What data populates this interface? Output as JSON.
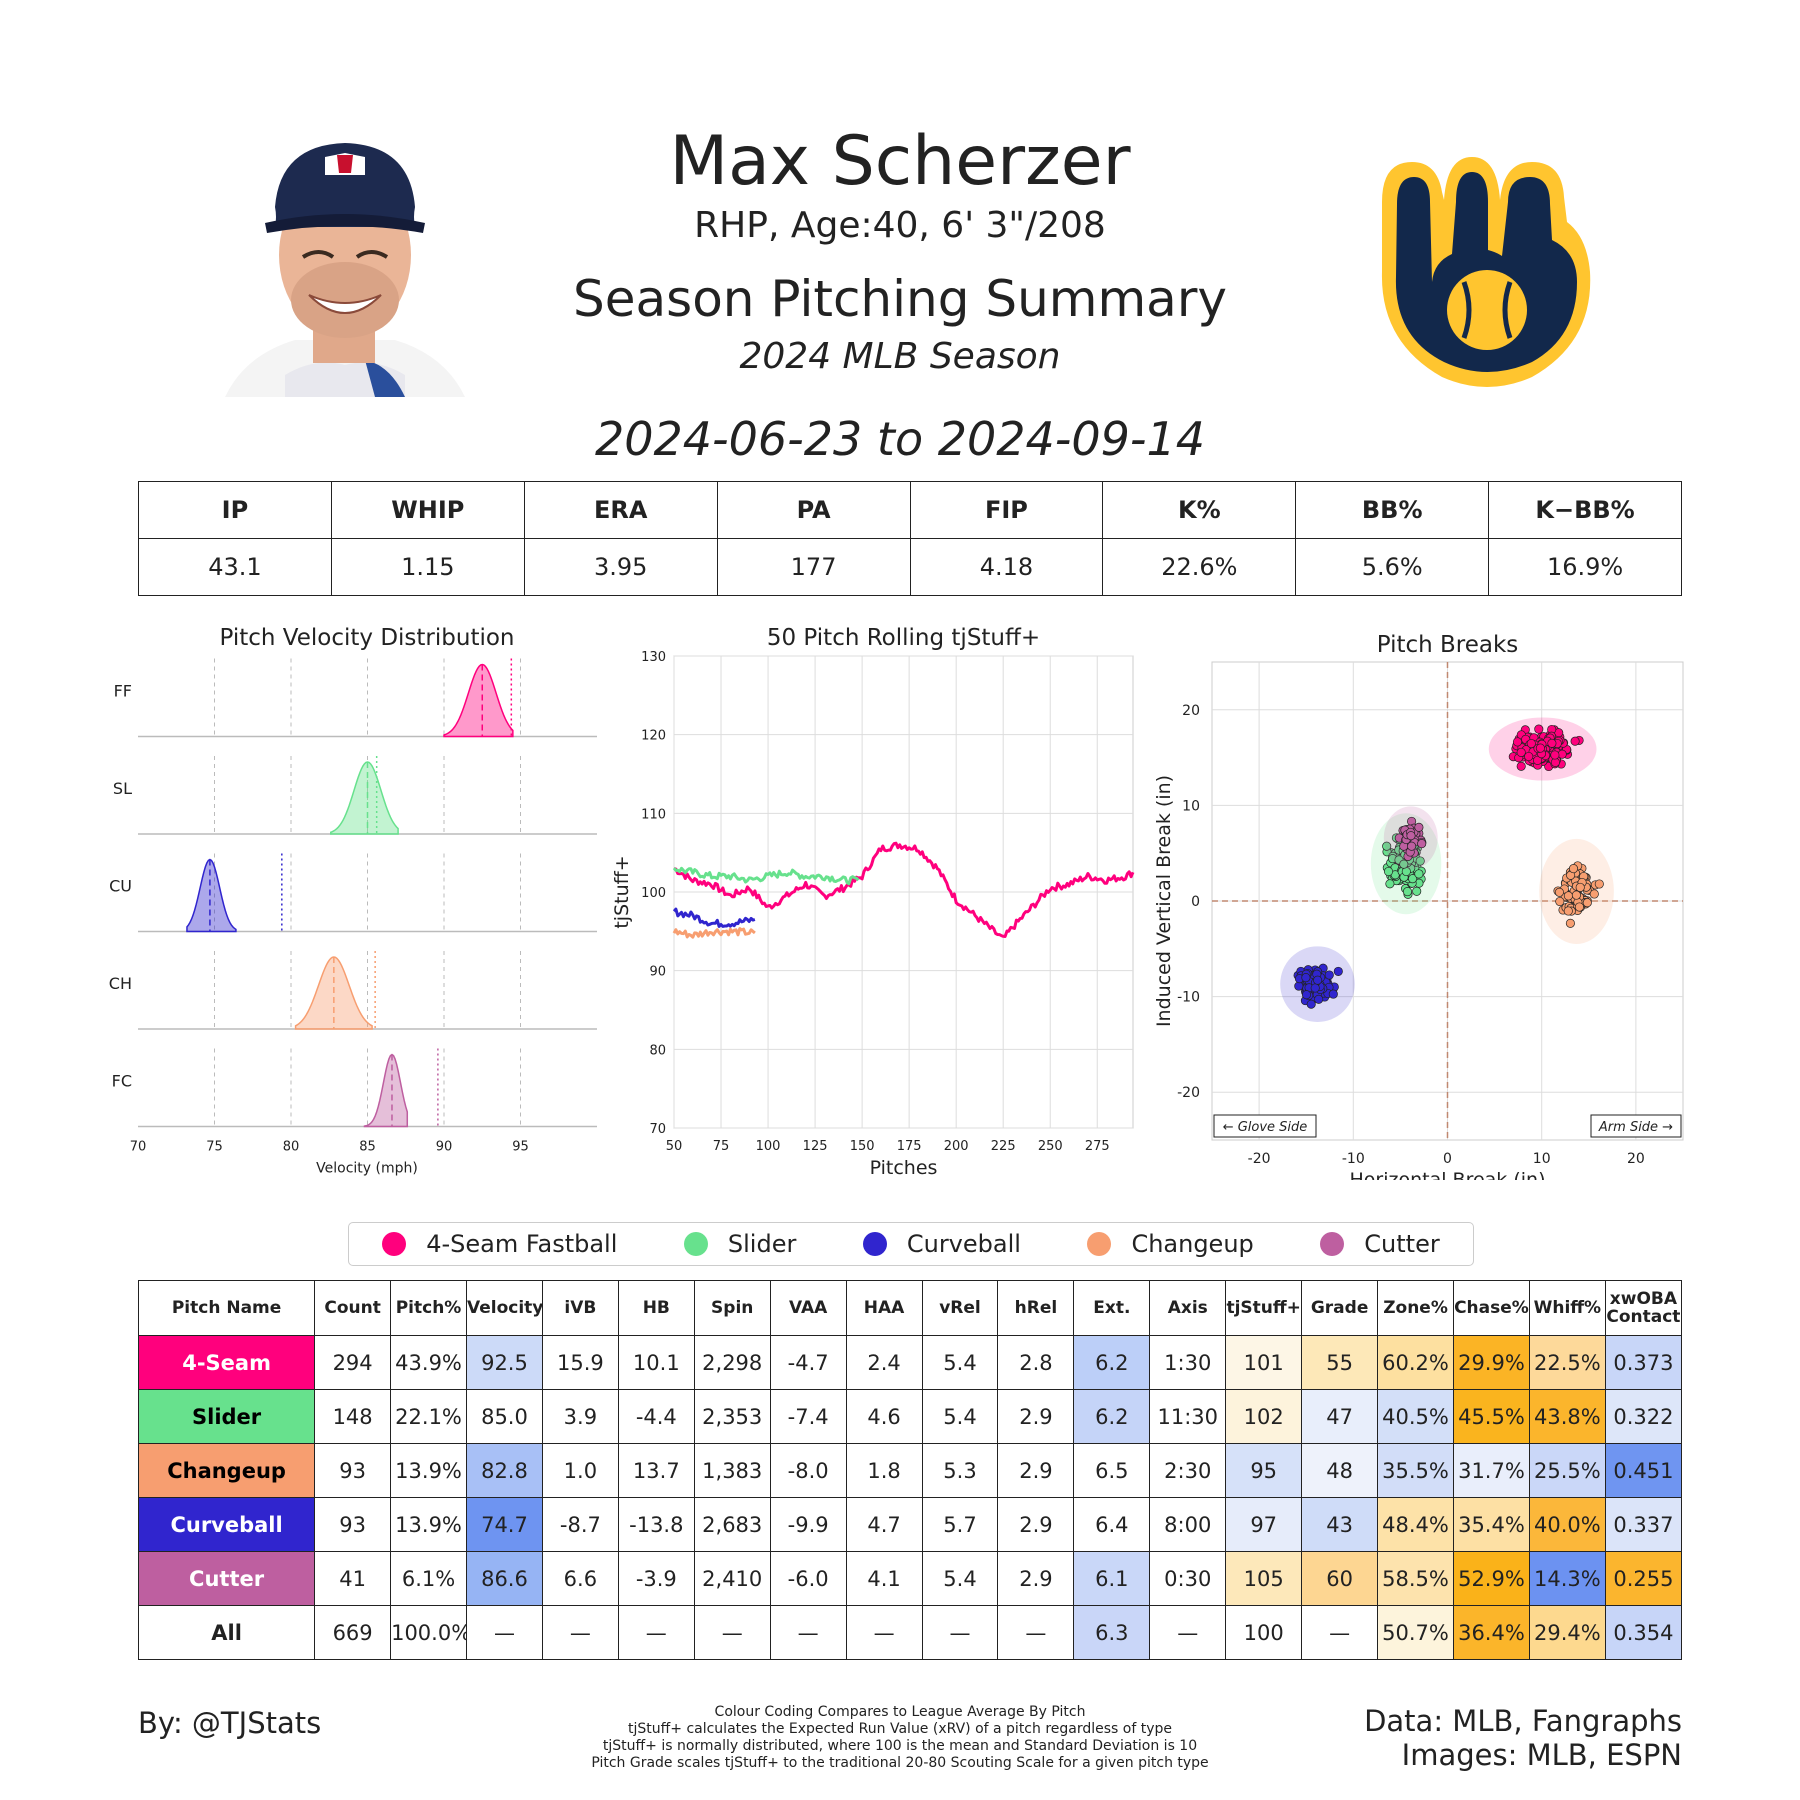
{
  "header": {
    "player_name": "Max Scherzer",
    "player_info": "RHP, Age:40, 6' 3\"/208",
    "summary_title": "Season Pitching Summary",
    "season_label": "2024 MLB Season",
    "date_range": "2024-06-23 to 2024-09-14"
  },
  "images": {
    "headshot": "player-headshot",
    "logo": "brewers-glove-logo"
  },
  "colors": {
    "FF": "#FF007D",
    "SL": "#67E18D",
    "CU": "#3025CE",
    "CH": "#F79E70",
    "FC": "#BE5FA0",
    "logo_navy": "#12284B",
    "logo_gold": "#FFC52F"
  },
  "season_stats": {
    "headers": [
      "IP",
      "WHIP",
      "ERA",
      "PA",
      "FIP",
      "K%",
      "BB%",
      "K−BB%"
    ],
    "values": [
      "43.1",
      "1.15",
      "3.95",
      "177",
      "4.18",
      "22.6%",
      "5.6%",
      "16.9%"
    ]
  },
  "chart_data": [
    {
      "type": "area",
      "title": "Pitch Velocity Distribution",
      "xlabel": "Velocity (mph)",
      "xlim": [
        70,
        100
      ],
      "xticks": [
        "70",
        "75",
        "80",
        "85",
        "90",
        "95"
      ],
      "series": [
        {
          "name": "FF",
          "mean": 92.5,
          "league_avg": 94.4,
          "min": 90.0,
          "max": 94.5
        },
        {
          "name": "SL",
          "mean": 85.0,
          "league_avg": 85.6,
          "min": 82.6,
          "max": 87.0
        },
        {
          "name": "CU",
          "mean": 74.7,
          "league_avg": 79.4,
          "min": 73.2,
          "max": 76.4
        },
        {
          "name": "CH",
          "mean": 82.8,
          "league_avg": 85.5,
          "min": 80.3,
          "max": 85.3
        },
        {
          "name": "FC",
          "mean": 86.6,
          "league_avg": 89.6,
          "min": 84.8,
          "max": 87.6
        }
      ]
    },
    {
      "type": "line",
      "title": "50 Pitch Rolling tjStuff+",
      "xlabel": "Pitches",
      "ylabel": "tjStuff+",
      "xlim": [
        50,
        294
      ],
      "ylim": [
        70,
        130
      ],
      "xticks": [
        "50",
        "75",
        "100",
        "125",
        "150",
        "175",
        "200",
        "225",
        "250",
        "275"
      ],
      "yticks": [
        "70",
        "80",
        "90",
        "100",
        "110",
        "120",
        "130"
      ],
      "series": [
        {
          "name": "FF",
          "x": [
            50,
            60,
            70,
            80,
            90,
            100,
            110,
            120,
            130,
            140,
            150,
            160,
            170,
            180,
            190,
            200,
            210,
            220,
            225,
            230,
            240,
            250,
            260,
            270,
            280,
            290,
            294
          ],
          "y": [
            103,
            101.5,
            101,
            99.5,
            100.5,
            98,
            99.5,
            101,
            99.5,
            100.5,
            102,
            105.5,
            106,
            105.5,
            103,
            99,
            97,
            95,
            94,
            95.5,
            98,
            100.5,
            101,
            102,
            101.5,
            102,
            102.5
          ]
        },
        {
          "name": "SL",
          "x": [
            50,
            60,
            70,
            80,
            90,
            100,
            110,
            120,
            130,
            140,
            148
          ],
          "y": [
            103,
            102.5,
            102,
            102,
            101.5,
            102,
            102.5,
            102,
            102,
            101.5,
            101.5
          ]
        },
        {
          "name": "CU",
          "x": [
            50,
            60,
            70,
            80,
            93
          ],
          "y": [
            97.5,
            97,
            96,
            96,
            96.5
          ]
        },
        {
          "name": "CH",
          "x": [
            50,
            60,
            70,
            80,
            93
          ],
          "y": [
            95,
            94.5,
            95,
            95,
            94.8
          ]
        }
      ]
    },
    {
      "type": "scatter",
      "title": "Pitch Breaks",
      "xlabel": "Horizontal Break (in)",
      "ylabel": "Induced Vertical Break (in)",
      "xlim": [
        -25,
        25
      ],
      "ylim": [
        -25,
        25
      ],
      "xticks": [
        "-20",
        "-10",
        "0",
        "10",
        "20"
      ],
      "yticks": [
        "20",
        "10",
        "0",
        "-10",
        "-20"
      ],
      "annotations": [
        "← Glove Side",
        "Arm Side →"
      ],
      "series": [
        {
          "name": "FF",
          "hb": 10.1,
          "ivb": 15.9,
          "count": 294
        },
        {
          "name": "SL",
          "hb": -4.4,
          "ivb": 3.9,
          "count": 148
        },
        {
          "name": "CU",
          "hb": -13.8,
          "ivb": -8.7,
          "count": 93
        },
        {
          "name": "CH",
          "hb": 13.7,
          "ivb": 1.0,
          "count": 93
        },
        {
          "name": "FC",
          "hb": -3.9,
          "ivb": 6.6,
          "count": 41
        }
      ]
    },
    {
      "type": "table",
      "title": "Pitch Metrics",
      "columns": [
        "Pitch Name",
        "Count",
        "Pitch%",
        "Velocity",
        "iVB",
        "HB",
        "Spin",
        "VAA",
        "HAA",
        "vRel",
        "hRel",
        "Ext.",
        "Axis",
        "tjStuff+",
        "Grade",
        "Zone%",
        "Chase%",
        "Whiff%",
        "xwOBA Contact"
      ],
      "rows": [
        {
          "code": "FF",
          "name": "4-Seam",
          "cells": [
            "294",
            "43.9%",
            "92.5",
            "15.9",
            "10.1",
            "2,298",
            "-4.7",
            "2.4",
            "5.4",
            "2.8",
            "6.2",
            "1:30",
            "101",
            "55",
            "60.2%",
            "29.9%",
            "22.5%",
            "0.373"
          ]
        },
        {
          "code": "SL",
          "name": "Slider",
          "cells": [
            "148",
            "22.1%",
            "85.0",
            "3.9",
            "-4.4",
            "2,353",
            "-7.4",
            "4.6",
            "5.4",
            "2.9",
            "6.2",
            "11:30",
            "102",
            "47",
            "40.5%",
            "45.5%",
            "43.8%",
            "0.322"
          ]
        },
        {
          "code": "CH",
          "name": "Changeup",
          "cells": [
            "93",
            "13.9%",
            "82.8",
            "1.0",
            "13.7",
            "1,383",
            "-8.0",
            "1.8",
            "5.3",
            "2.9",
            "6.5",
            "2:30",
            "95",
            "48",
            "35.5%",
            "31.7%",
            "25.5%",
            "0.451"
          ]
        },
        {
          "code": "CU",
          "name": "Curveball",
          "cells": [
            "93",
            "13.9%",
            "74.7",
            "-8.7",
            "-13.8",
            "2,683",
            "-9.9",
            "4.7",
            "5.7",
            "2.9",
            "6.4",
            "8:00",
            "97",
            "43",
            "48.4%",
            "35.4%",
            "40.0%",
            "0.337"
          ]
        },
        {
          "code": "FC",
          "name": "Cutter",
          "cells": [
            "41",
            "6.1%",
            "86.6",
            "6.6",
            "-3.9",
            "2,410",
            "-6.0",
            "4.1",
            "5.4",
            "2.9",
            "6.1",
            "0:30",
            "105",
            "60",
            "58.5%",
            "52.9%",
            "14.3%",
            "0.255"
          ]
        },
        {
          "code": "ALL",
          "name": "All",
          "cells": [
            "669",
            "100.0%",
            "—",
            "—",
            "—",
            "—",
            "—",
            "—",
            "—",
            "—",
            "6.3",
            "—",
            "100",
            "—",
            "50.7%",
            "36.4%",
            "29.4%",
            "0.354"
          ]
        }
      ],
      "cell_colors": [
        [
          "",
          "",
          "#ccdaf8",
          "",
          "",
          "",
          "",
          "",
          "",
          "",
          "#bccff8",
          "",
          "#fdf6e6",
          "#fde8b8",
          "#fde0a0",
          "#fbb425",
          "#fdd99a",
          "#c8d6f8"
        ],
        [
          "",
          "",
          "",
          "",
          "",
          "",
          "",
          "",
          "",
          "",
          "#c5d4f8",
          "",
          "#fdf3dc",
          "#e8eefb",
          "#d3dff8",
          "#fab41e",
          "#fbb52c",
          "#dde6f9"
        ],
        [
          "",
          "",
          "#a8c0f6",
          "",
          "",
          "",
          "",
          "",
          "",
          "",
          "",
          "",
          "#d6e1f9",
          "#eef2fb",
          "#d2ddf8",
          "#e9eefb",
          "#cad7f8",
          "#6f95f1"
        ],
        [
          "",
          "",
          "#6e94f1",
          "",
          "",
          "",
          "",
          "",
          "",
          "",
          "",
          "",
          "#e6ecfa",
          "#cfdcf8",
          "#fde2a8",
          "#fde0a4",
          "#fbb73a",
          "#dbe4f9"
        ],
        [
          "",
          "",
          "#96b4f4",
          "",
          "",
          "",
          "",
          "",
          "",
          "",
          "#c9d7f8",
          "",
          "#fde8ba",
          "#fdd692",
          "#fde3ad",
          "#fab219",
          "#6c92f1",
          "#fbb52e"
        ],
        [
          "",
          "",
          "",
          "",
          "",
          "",
          "",
          "",
          "",
          "",
          "#c9d6f8",
          "",
          "",
          "",
          "#fdf4dc",
          "#fbb52a",
          "#fdd98f",
          "#c7d5f8"
        ]
      ]
    }
  ],
  "legend": [
    {
      "code": "FF",
      "label": "4-Seam Fastball"
    },
    {
      "code": "SL",
      "label": "Slider"
    },
    {
      "code": "CU",
      "label": "Curveball"
    },
    {
      "code": "CH",
      "label": "Changeup"
    },
    {
      "code": "FC",
      "label": "Cutter"
    }
  ],
  "footer": {
    "credit": "By: @TJStats",
    "notes": [
      "Colour Coding Compares to League Average By Pitch",
      "tjStuff+ calculates the Expected Run Value (xRV) of a pitch regardless of type",
      "tjStuff+ is normally distributed, where 100 is the mean and Standard Deviation is 10",
      "Pitch Grade scales tjStuff+ to the traditional 20-80 Scouting Scale for a given pitch type"
    ],
    "data_source": "Data: MLB, Fangraphs",
    "image_source": "Images: MLB, ESPN"
  }
}
